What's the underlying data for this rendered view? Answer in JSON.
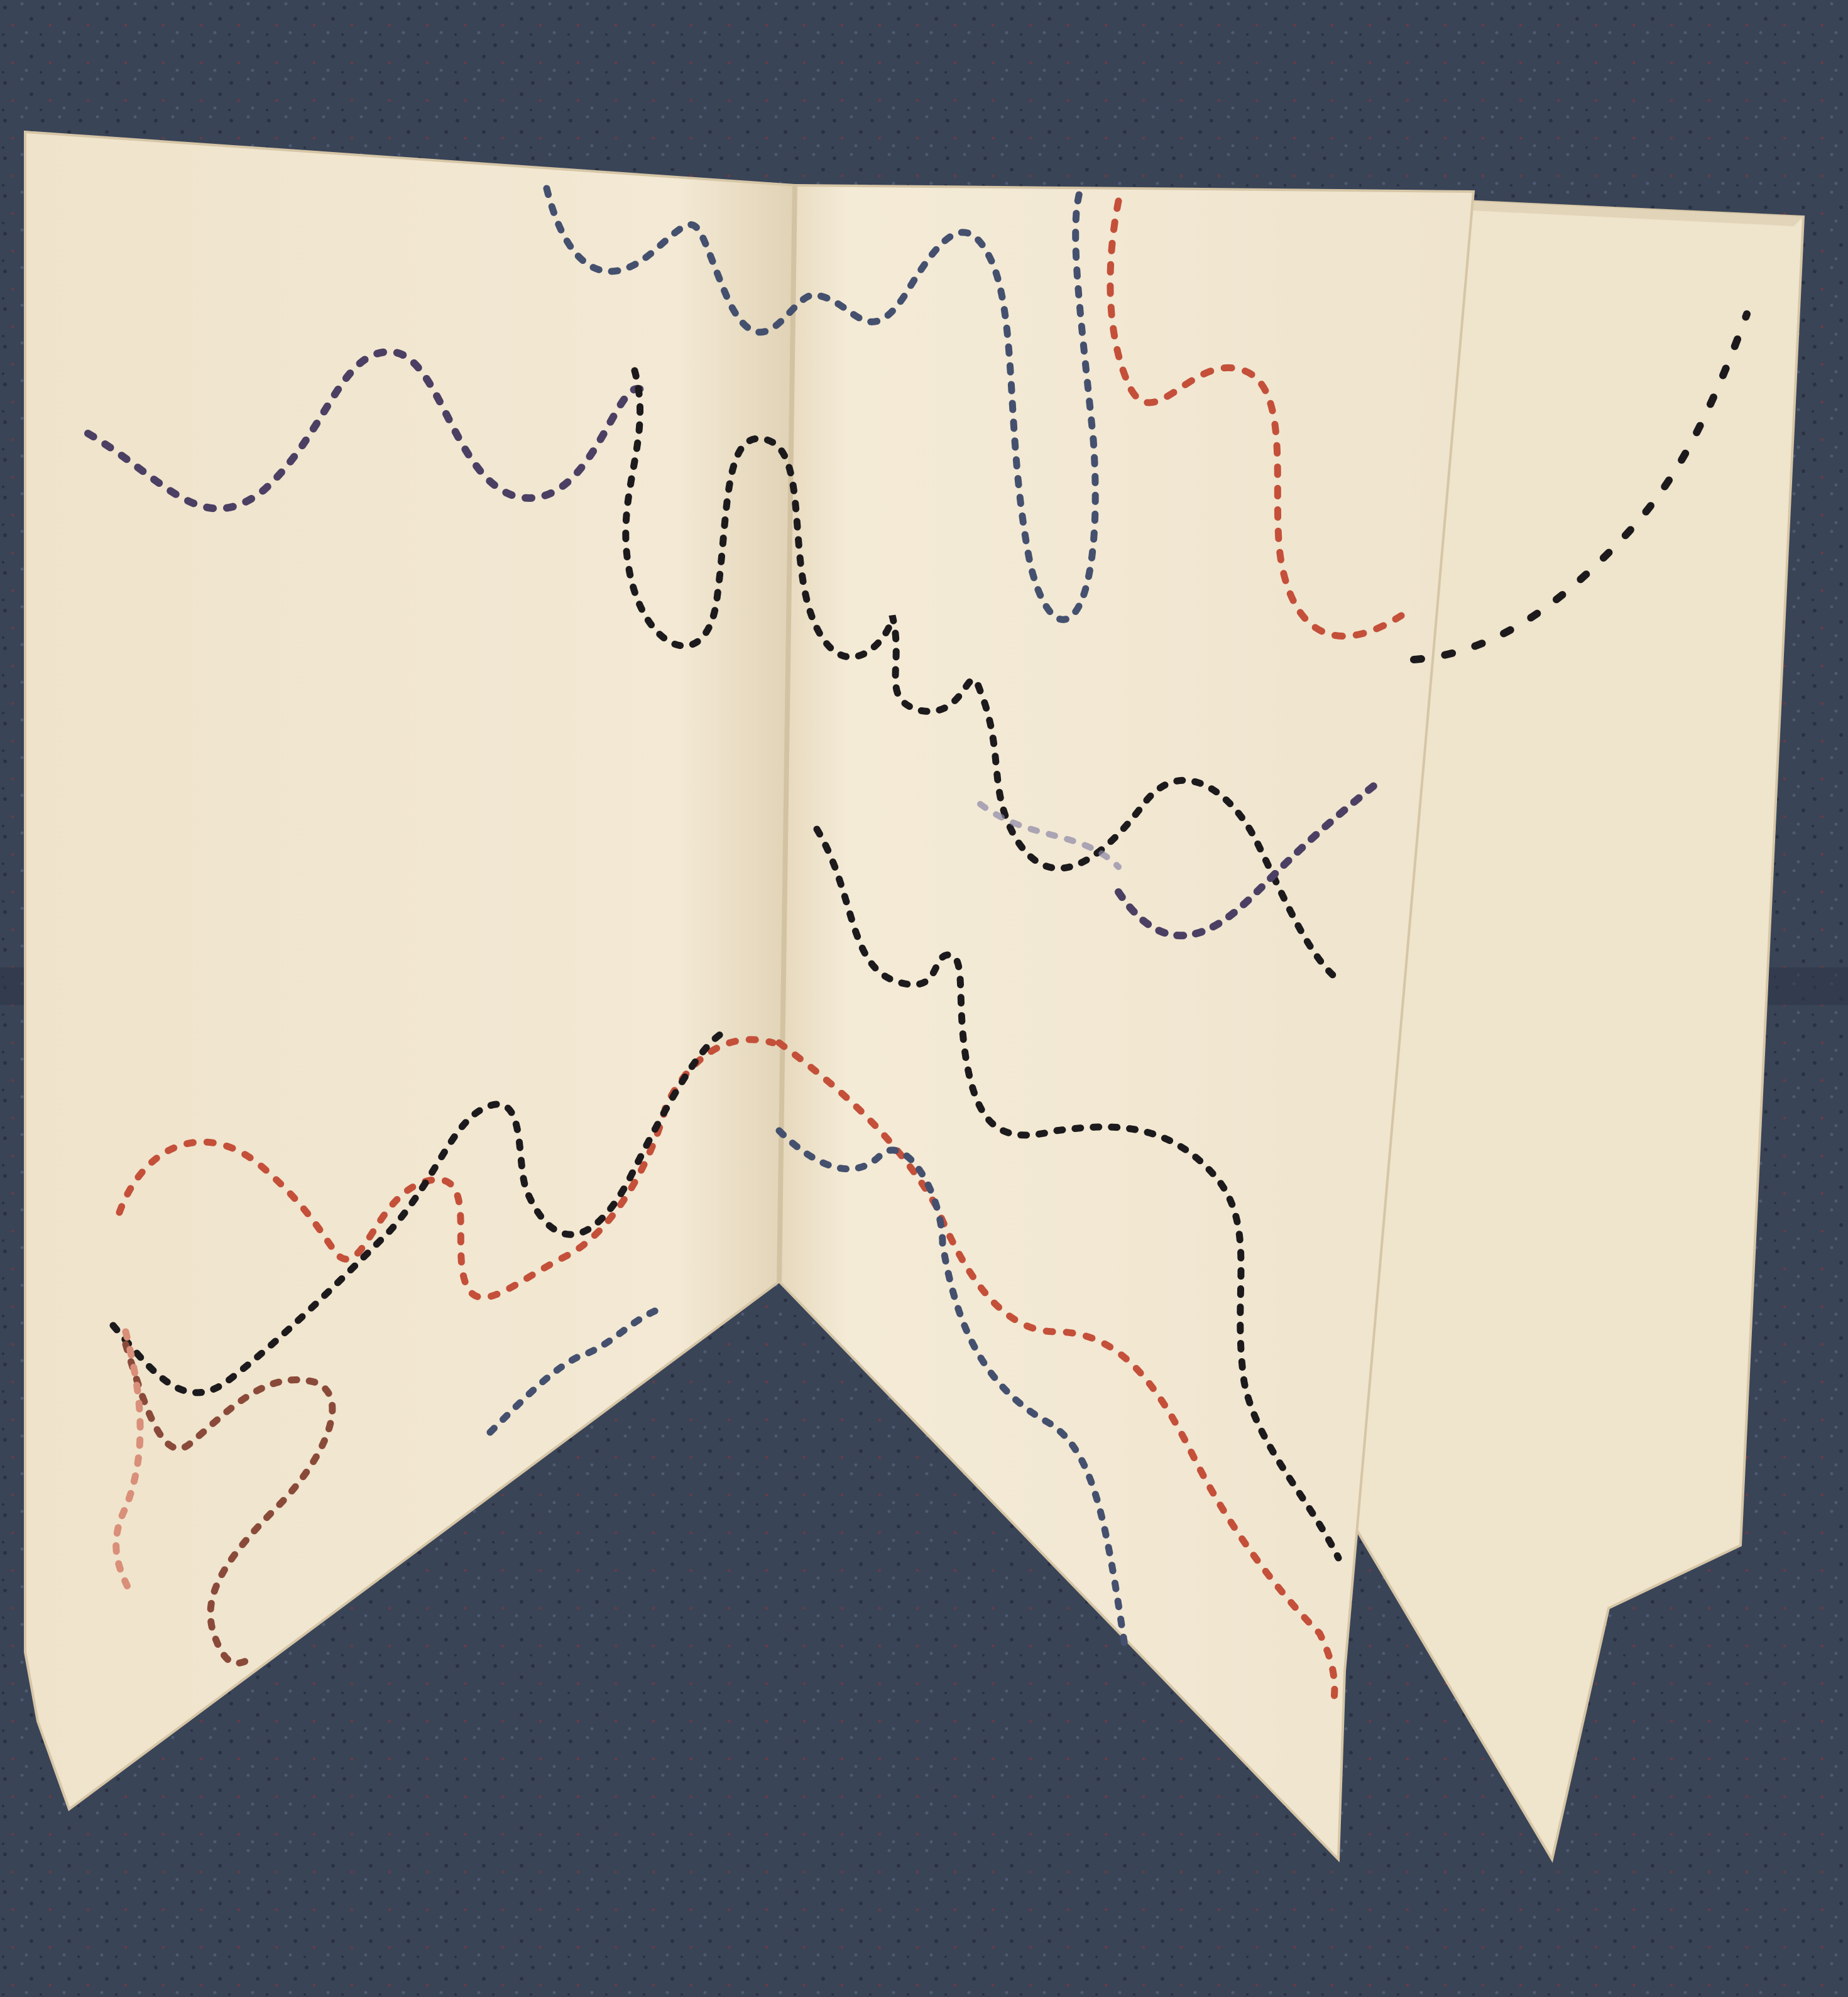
{
  "scene": {
    "subject": "open-book",
    "pages": [
      "left-page",
      "right-page",
      "back-pages"
    ],
    "colors": {
      "background": "#3a4457",
      "background_dark": "#2a3142",
      "fabric_fleck_red": "#6e3a44",
      "paper": "#f1e6cf",
      "paper_shade": "#e2d4b8",
      "paper_edge": "#d6c6a6",
      "stitch_black": "#1c1a1c",
      "stitch_red": "#c4503a",
      "stitch_purple": "#4b3f63",
      "stitch_blue": "#44506e",
      "stitch_pink": "#d98f79"
    }
  }
}
